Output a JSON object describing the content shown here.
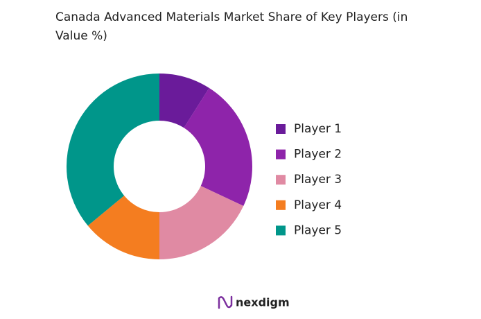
{
  "chart_data": {
    "type": "donut",
    "title": "Canada Advanced Materials Market Share of Key Players (in Value %)",
    "categories": [
      "Player 1",
      "Player 2",
      "Player 3",
      "Player 4",
      "Player 5"
    ],
    "values": [
      9,
      23,
      18,
      14,
      36
    ],
    "colors": [
      "#6a1b9a",
      "#8e24aa",
      "#e08aa3",
      "#f47d20",
      "#00968a"
    ],
    "legend": "right"
  },
  "logo": "nexdigm"
}
